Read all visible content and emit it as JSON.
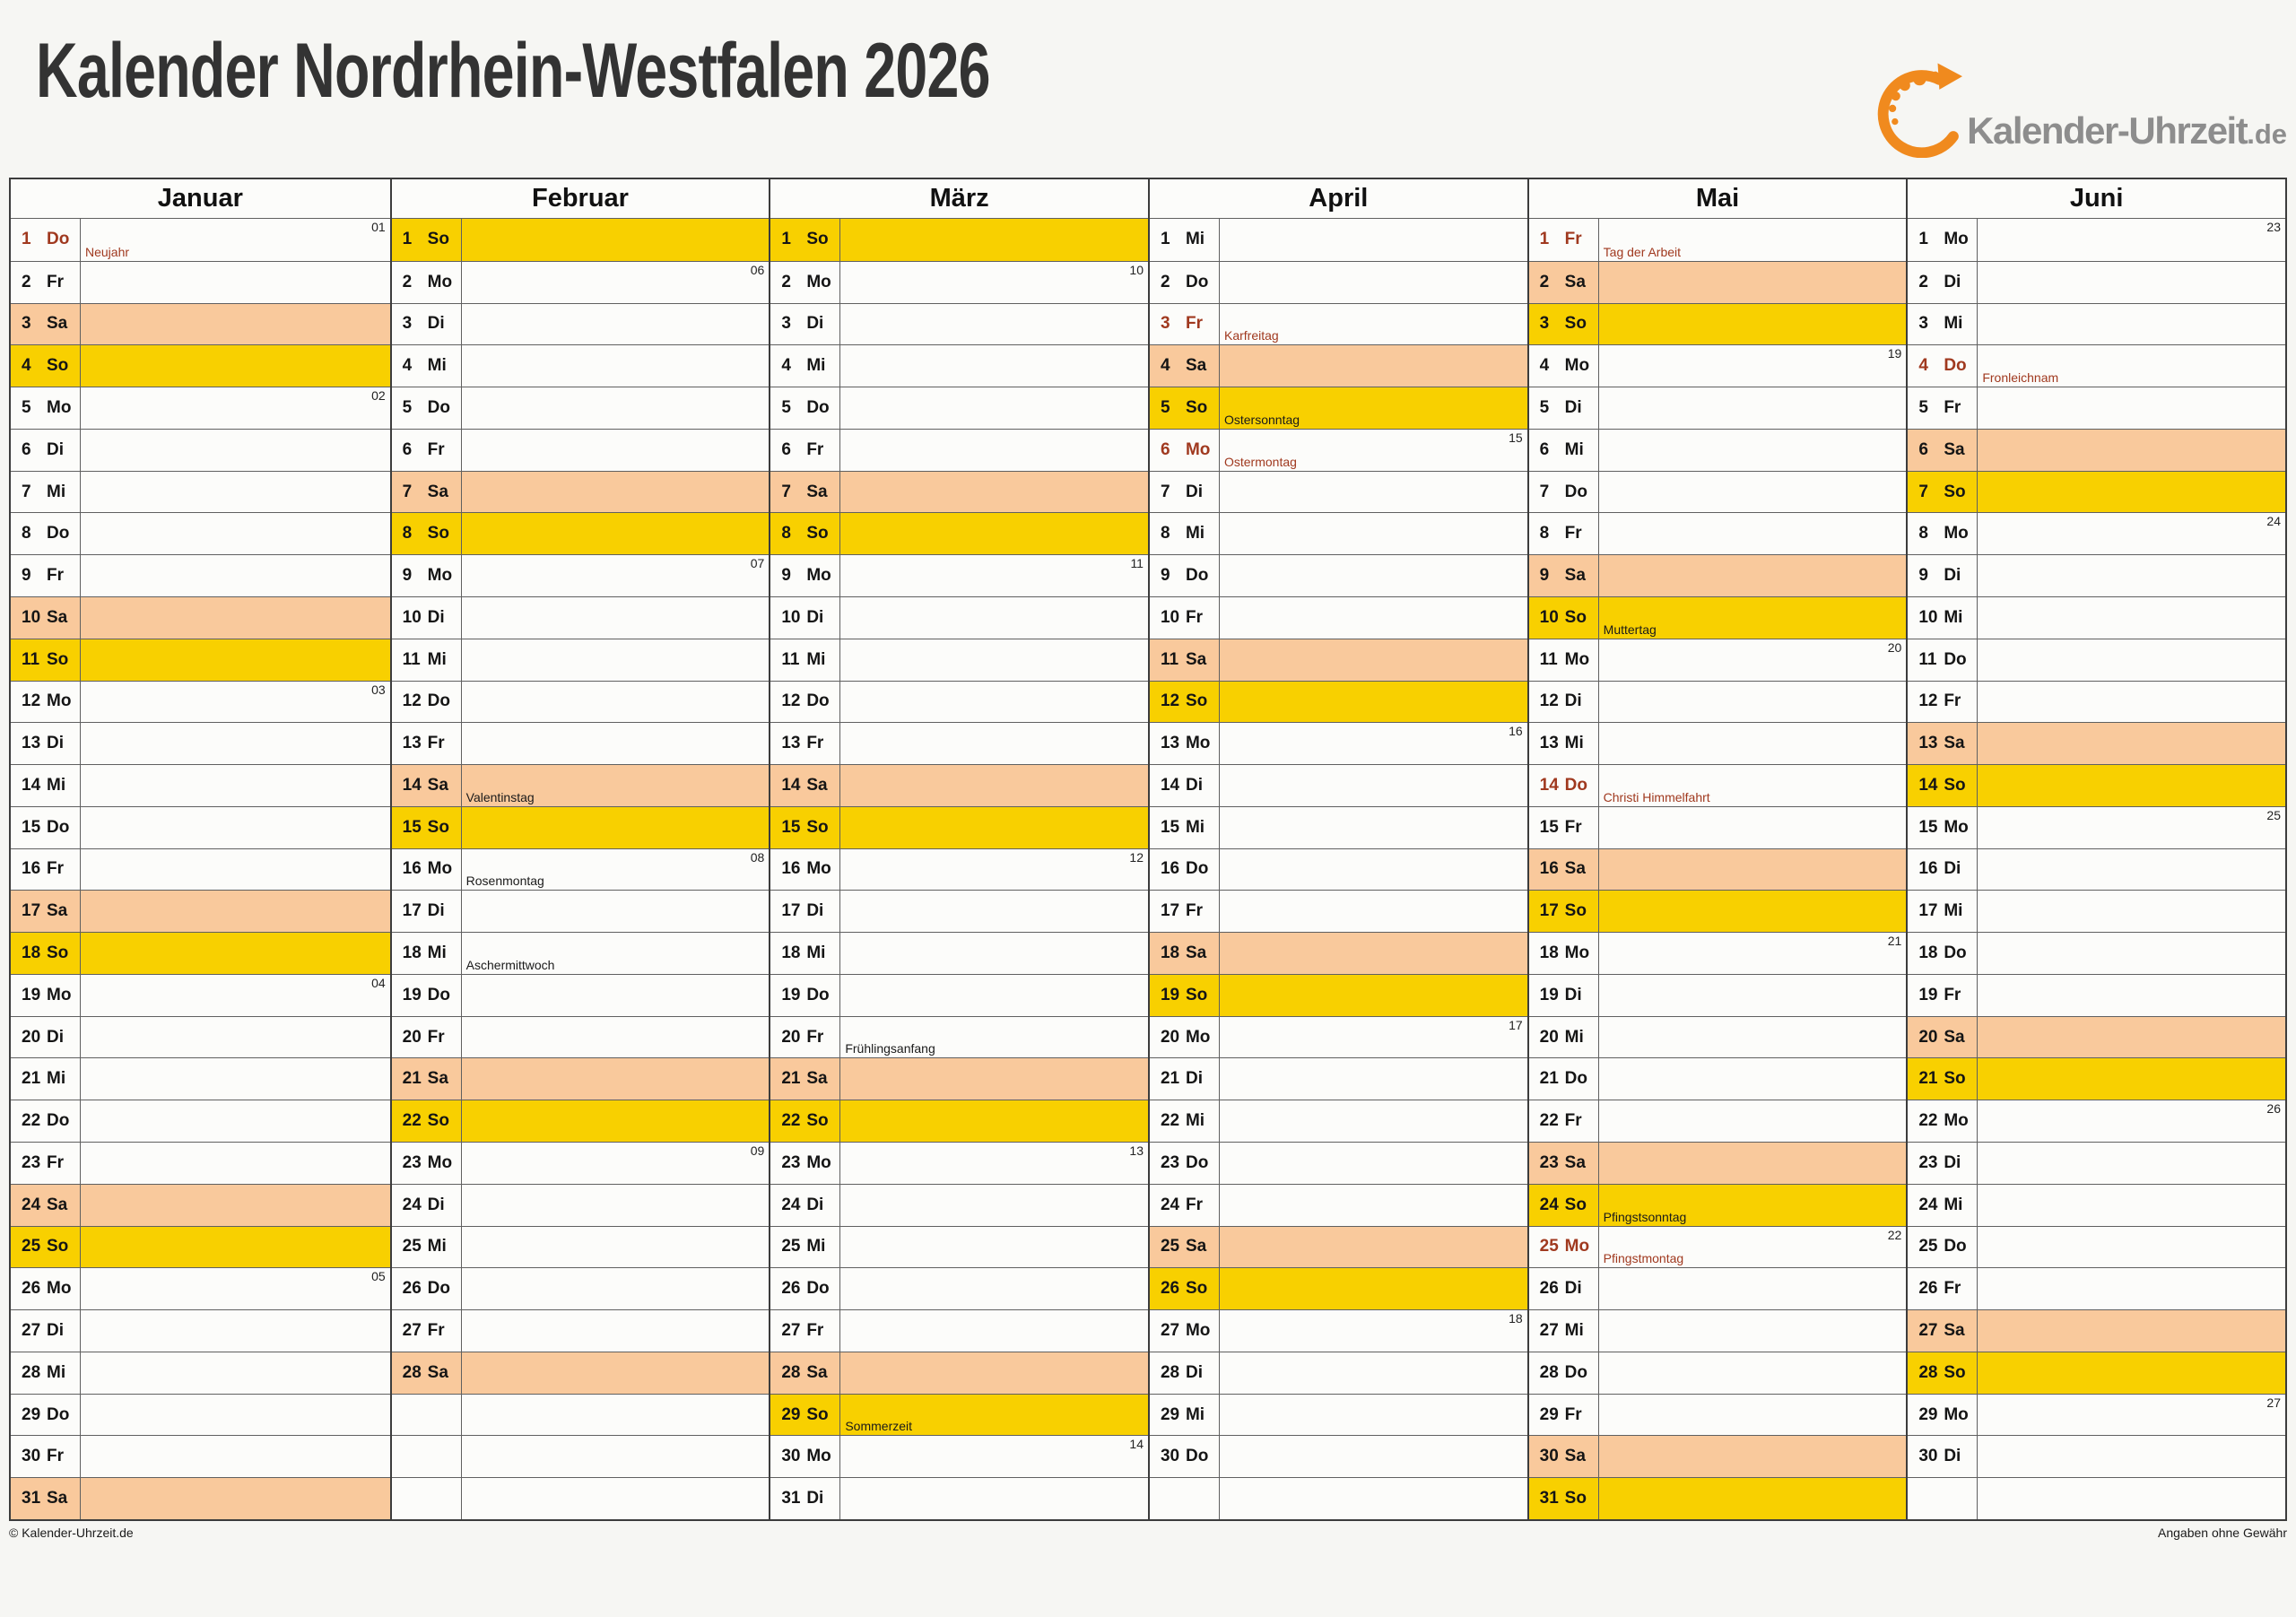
{
  "page": {
    "title": "Kalender Nordrhein-Westfalen 2026",
    "logo": {
      "name": "Kalender-Uhrzeit",
      "tld": ".de"
    },
    "footer_left": "© Kalender-Uhrzeit.de",
    "footer_right": "Angaben ohne Gewähr"
  },
  "colors": {
    "saturday_row": "#F9C99C",
    "sunday_row": "#F8D000",
    "holiday_text": "#A0391F",
    "brand_orange": "#F08A1E",
    "title_text": "#333333",
    "logo_gray": "#8D8D8D"
  },
  "months": [
    {
      "name": "Januar",
      "days": [
        {
          "d": 1,
          "w": "Do",
          "wk": "01",
          "h": "Neujahr",
          "hol": true
        },
        {
          "d": 2,
          "w": "Fr"
        },
        {
          "d": 3,
          "w": "Sa"
        },
        {
          "d": 4,
          "w": "So"
        },
        {
          "d": 5,
          "w": "Mo",
          "wk": "02"
        },
        {
          "d": 6,
          "w": "Di"
        },
        {
          "d": 7,
          "w": "Mi"
        },
        {
          "d": 8,
          "w": "Do"
        },
        {
          "d": 9,
          "w": "Fr"
        },
        {
          "d": 10,
          "w": "Sa"
        },
        {
          "d": 11,
          "w": "So"
        },
        {
          "d": 12,
          "w": "Mo",
          "wk": "03"
        },
        {
          "d": 13,
          "w": "Di"
        },
        {
          "d": 14,
          "w": "Mi"
        },
        {
          "d": 15,
          "w": "Do"
        },
        {
          "d": 16,
          "w": "Fr"
        },
        {
          "d": 17,
          "w": "Sa"
        },
        {
          "d": 18,
          "w": "So"
        },
        {
          "d": 19,
          "w": "Mo",
          "wk": "04"
        },
        {
          "d": 20,
          "w": "Di"
        },
        {
          "d": 21,
          "w": "Mi"
        },
        {
          "d": 22,
          "w": "Do"
        },
        {
          "d": 23,
          "w": "Fr"
        },
        {
          "d": 24,
          "w": "Sa"
        },
        {
          "d": 25,
          "w": "So"
        },
        {
          "d": 26,
          "w": "Mo",
          "wk": "05"
        },
        {
          "d": 27,
          "w": "Di"
        },
        {
          "d": 28,
          "w": "Mi"
        },
        {
          "d": 29,
          "w": "Do"
        },
        {
          "d": 30,
          "w": "Fr"
        },
        {
          "d": 31,
          "w": "Sa"
        }
      ]
    },
    {
      "name": "Februar",
      "days": [
        {
          "d": 1,
          "w": "So"
        },
        {
          "d": 2,
          "w": "Mo",
          "wk": "06"
        },
        {
          "d": 3,
          "w": "Di"
        },
        {
          "d": 4,
          "w": "Mi"
        },
        {
          "d": 5,
          "w": "Do"
        },
        {
          "d": 6,
          "w": "Fr"
        },
        {
          "d": 7,
          "w": "Sa"
        },
        {
          "d": 8,
          "w": "So"
        },
        {
          "d": 9,
          "w": "Mo",
          "wk": "07"
        },
        {
          "d": 10,
          "w": "Di"
        },
        {
          "d": 11,
          "w": "Mi"
        },
        {
          "d": 12,
          "w": "Do"
        },
        {
          "d": 13,
          "w": "Fr"
        },
        {
          "d": 14,
          "w": "Sa",
          "h": "Valentinstag"
        },
        {
          "d": 15,
          "w": "So"
        },
        {
          "d": 16,
          "w": "Mo",
          "wk": "08",
          "h": "Rosenmontag"
        },
        {
          "d": 17,
          "w": "Di"
        },
        {
          "d": 18,
          "w": "Mi",
          "h": "Aschermittwoch"
        },
        {
          "d": 19,
          "w": "Do"
        },
        {
          "d": 20,
          "w": "Fr"
        },
        {
          "d": 21,
          "w": "Sa"
        },
        {
          "d": 22,
          "w": "So"
        },
        {
          "d": 23,
          "w": "Mo",
          "wk": "09"
        },
        {
          "d": 24,
          "w": "Di"
        },
        {
          "d": 25,
          "w": "Mi"
        },
        {
          "d": 26,
          "w": "Do"
        },
        {
          "d": 27,
          "w": "Fr"
        },
        {
          "d": 28,
          "w": "Sa"
        },
        null,
        null,
        null
      ]
    },
    {
      "name": "März",
      "days": [
        {
          "d": 1,
          "w": "So"
        },
        {
          "d": 2,
          "w": "Mo",
          "wk": "10"
        },
        {
          "d": 3,
          "w": "Di"
        },
        {
          "d": 4,
          "w": "Mi"
        },
        {
          "d": 5,
          "w": "Do"
        },
        {
          "d": 6,
          "w": "Fr"
        },
        {
          "d": 7,
          "w": "Sa"
        },
        {
          "d": 8,
          "w": "So"
        },
        {
          "d": 9,
          "w": "Mo",
          "wk": "11"
        },
        {
          "d": 10,
          "w": "Di"
        },
        {
          "d": 11,
          "w": "Mi"
        },
        {
          "d": 12,
          "w": "Do"
        },
        {
          "d": 13,
          "w": "Fr"
        },
        {
          "d": 14,
          "w": "Sa"
        },
        {
          "d": 15,
          "w": "So"
        },
        {
          "d": 16,
          "w": "Mo",
          "wk": "12"
        },
        {
          "d": 17,
          "w": "Di"
        },
        {
          "d": 18,
          "w": "Mi"
        },
        {
          "d": 19,
          "w": "Do"
        },
        {
          "d": 20,
          "w": "Fr",
          "h": "Frühlingsanfang"
        },
        {
          "d": 21,
          "w": "Sa"
        },
        {
          "d": 22,
          "w": "So"
        },
        {
          "d": 23,
          "w": "Mo",
          "wk": "13"
        },
        {
          "d": 24,
          "w": "Di"
        },
        {
          "d": 25,
          "w": "Mi"
        },
        {
          "d": 26,
          "w": "Do"
        },
        {
          "d": 27,
          "w": "Fr"
        },
        {
          "d": 28,
          "w": "Sa"
        },
        {
          "d": 29,
          "w": "So",
          "h": "Sommerzeit"
        },
        {
          "d": 30,
          "w": "Mo",
          "wk": "14"
        },
        {
          "d": 31,
          "w": "Di"
        }
      ]
    },
    {
      "name": "April",
      "days": [
        {
          "d": 1,
          "w": "Mi"
        },
        {
          "d": 2,
          "w": "Do"
        },
        {
          "d": 3,
          "w": "Fr",
          "h": "Karfreitag",
          "hol": true
        },
        {
          "d": 4,
          "w": "Sa"
        },
        {
          "d": 5,
          "w": "So",
          "h": "Ostersonntag"
        },
        {
          "d": 6,
          "w": "Mo",
          "wk": "15",
          "h": "Ostermontag",
          "hol": true
        },
        {
          "d": 7,
          "w": "Di"
        },
        {
          "d": 8,
          "w": "Mi"
        },
        {
          "d": 9,
          "w": "Do"
        },
        {
          "d": 10,
          "w": "Fr"
        },
        {
          "d": 11,
          "w": "Sa"
        },
        {
          "d": 12,
          "w": "So"
        },
        {
          "d": 13,
          "w": "Mo",
          "wk": "16"
        },
        {
          "d": 14,
          "w": "Di"
        },
        {
          "d": 15,
          "w": "Mi"
        },
        {
          "d": 16,
          "w": "Do"
        },
        {
          "d": 17,
          "w": "Fr"
        },
        {
          "d": 18,
          "w": "Sa"
        },
        {
          "d": 19,
          "w": "So"
        },
        {
          "d": 20,
          "w": "Mo",
          "wk": "17"
        },
        {
          "d": 21,
          "w": "Di"
        },
        {
          "d": 22,
          "w": "Mi"
        },
        {
          "d": 23,
          "w": "Do"
        },
        {
          "d": 24,
          "w": "Fr"
        },
        {
          "d": 25,
          "w": "Sa"
        },
        {
          "d": 26,
          "w": "So"
        },
        {
          "d": 27,
          "w": "Mo",
          "wk": "18"
        },
        {
          "d": 28,
          "w": "Di"
        },
        {
          "d": 29,
          "w": "Mi"
        },
        {
          "d": 30,
          "w": "Do"
        },
        null
      ]
    },
    {
      "name": "Mai",
      "days": [
        {
          "d": 1,
          "w": "Fr",
          "h": "Tag der Arbeit",
          "hol": true
        },
        {
          "d": 2,
          "w": "Sa"
        },
        {
          "d": 3,
          "w": "So"
        },
        {
          "d": 4,
          "w": "Mo",
          "wk": "19"
        },
        {
          "d": 5,
          "w": "Di"
        },
        {
          "d": 6,
          "w": "Mi"
        },
        {
          "d": 7,
          "w": "Do"
        },
        {
          "d": 8,
          "w": "Fr"
        },
        {
          "d": 9,
          "w": "Sa"
        },
        {
          "d": 10,
          "w": "So",
          "h": "Muttertag"
        },
        {
          "d": 11,
          "w": "Mo",
          "wk": "20"
        },
        {
          "d": 12,
          "w": "Di"
        },
        {
          "d": 13,
          "w": "Mi"
        },
        {
          "d": 14,
          "w": "Do",
          "h": "Christi Himmelfahrt",
          "hol": true
        },
        {
          "d": 15,
          "w": "Fr"
        },
        {
          "d": 16,
          "w": "Sa"
        },
        {
          "d": 17,
          "w": "So"
        },
        {
          "d": 18,
          "w": "Mo",
          "wk": "21"
        },
        {
          "d": 19,
          "w": "Di"
        },
        {
          "d": 20,
          "w": "Mi"
        },
        {
          "d": 21,
          "w": "Do"
        },
        {
          "d": 22,
          "w": "Fr"
        },
        {
          "d": 23,
          "w": "Sa"
        },
        {
          "d": 24,
          "w": "So",
          "h": "Pfingstsonntag"
        },
        {
          "d": 25,
          "w": "Mo",
          "wk": "22",
          "h": "Pfingstmontag",
          "hol": true
        },
        {
          "d": 26,
          "w": "Di"
        },
        {
          "d": 27,
          "w": "Mi"
        },
        {
          "d": 28,
          "w": "Do"
        },
        {
          "d": 29,
          "w": "Fr"
        },
        {
          "d": 30,
          "w": "Sa"
        },
        {
          "d": 31,
          "w": "So"
        }
      ]
    },
    {
      "name": "Juni",
      "days": [
        {
          "d": 1,
          "w": "Mo",
          "wk": "23"
        },
        {
          "d": 2,
          "w": "Di"
        },
        {
          "d": 3,
          "w": "Mi"
        },
        {
          "d": 4,
          "w": "Do",
          "h": "Fronleichnam",
          "hol": true
        },
        {
          "d": 5,
          "w": "Fr"
        },
        {
          "d": 6,
          "w": "Sa"
        },
        {
          "d": 7,
          "w": "So"
        },
        {
          "d": 8,
          "w": "Mo",
          "wk": "24"
        },
        {
          "d": 9,
          "w": "Di"
        },
        {
          "d": 10,
          "w": "Mi"
        },
        {
          "d": 11,
          "w": "Do"
        },
        {
          "d": 12,
          "w": "Fr"
        },
        {
          "d": 13,
          "w": "Sa"
        },
        {
          "d": 14,
          "w": "So"
        },
        {
          "d": 15,
          "w": "Mo",
          "wk": "25"
        },
        {
          "d": 16,
          "w": "Di"
        },
        {
          "d": 17,
          "w": "Mi"
        },
        {
          "d": 18,
          "w": "Do"
        },
        {
          "d": 19,
          "w": "Fr"
        },
        {
          "d": 20,
          "w": "Sa"
        },
        {
          "d": 21,
          "w": "So"
        },
        {
          "d": 22,
          "w": "Mo",
          "wk": "26"
        },
        {
          "d": 23,
          "w": "Di"
        },
        {
          "d": 24,
          "w": "Mi"
        },
        {
          "d": 25,
          "w": "Do"
        },
        {
          "d": 26,
          "w": "Fr"
        },
        {
          "d": 27,
          "w": "Sa"
        },
        {
          "d": 28,
          "w": "So"
        },
        {
          "d": 29,
          "w": "Mo",
          "wk": "27"
        },
        {
          "d": 30,
          "w": "Di"
        },
        null
      ]
    }
  ]
}
